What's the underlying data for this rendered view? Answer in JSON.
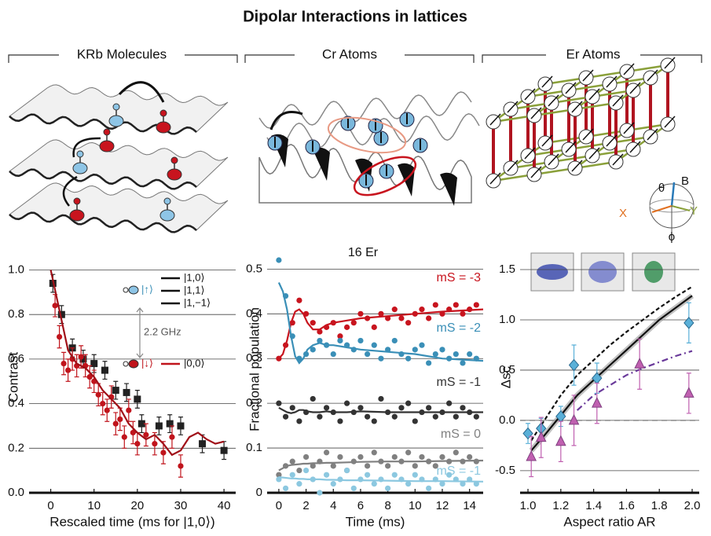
{
  "title": "Dipolar Interactions in lattices",
  "chart_data": [
    {
      "type": "scatter",
      "title": "KRb Molecules",
      "x_label": "Rescaled time (ms for |1,0⟩)",
      "y_label": "Contrast",
      "xlim": [
        -5,
        42.7
      ],
      "ylim": [
        0,
        1.03
      ],
      "xticks": [
        0,
        10,
        20,
        30,
        40
      ],
      "yticks": [
        {
          "value": 0,
          "label": "0.0"
        },
        0.2,
        0.4,
        0.6,
        0.8,
        {
          "value": 1,
          "label": "1.0"
        }
      ],
      "grid": true,
      "levels": [
        "|1,0⟩",
        "|1,1⟩",
        "|1,−1⟩",
        "|0,0⟩"
      ],
      "states": [
        "|↑⟩",
        "|↓⟩"
      ],
      "splitting": "2.2 GHz",
      "series": [
        {
          "color": "#222222",
          "marker": "square",
          "x": [
            0.5,
            2.5,
            5,
            7.5,
            10,
            12.5,
            15,
            17.5,
            20,
            21,
            25,
            27.5,
            30,
            35,
            40
          ],
          "values": [
            0.94,
            0.8,
            0.65,
            0.6,
            0.58,
            0.55,
            0.46,
            0.45,
            0.42,
            0.31,
            0.3,
            0.31,
            0.3,
            0.22,
            0.19
          ],
          "errors": [
            0.04,
            0.04,
            0.04,
            0.04,
            0.04,
            0.04,
            0.04,
            0.04,
            0.04,
            0.04,
            0.04,
            0.04,
            0.04,
            0.04,
            0.04
          ]
        },
        {
          "color": "#c0141c",
          "marker": "circle",
          "x": [
            1,
            2,
            3,
            4,
            5,
            6,
            7,
            8,
            9,
            10,
            11,
            12,
            13,
            14,
            15,
            16,
            17,
            18,
            19,
            20,
            22,
            24,
            26,
            28,
            30
          ],
          "values": [
            0.84,
            0.7,
            0.58,
            0.55,
            0.6,
            0.57,
            0.61,
            0.57,
            0.52,
            0.5,
            0.44,
            0.4,
            0.37,
            0.43,
            0.31,
            0.33,
            0.25,
            0.37,
            0.27,
            0.22,
            0.26,
            0.22,
            0.18,
            0.25,
            0.12
          ],
          "errors": [
            0.05,
            0.05,
            0.05,
            0.05,
            0.05,
            0.05,
            0.05,
            0.05,
            0.05,
            0.05,
            0.05,
            0.05,
            0.05,
            0.05,
            0.05,
            0.05,
            0.05,
            0.05,
            0.05,
            0.05,
            0.05,
            0.05,
            0.05,
            0.05,
            0.05
          ]
        },
        {
          "color": "#a01018",
          "line": "solid",
          "x": [
            0,
            2,
            4,
            6,
            8,
            10,
            12,
            14,
            16,
            18,
            20,
            22,
            24,
            26,
            28,
            30,
            32,
            34,
            36,
            38,
            40
          ],
          "values": [
            1.0,
            0.82,
            0.64,
            0.58,
            0.56,
            0.52,
            0.46,
            0.42,
            0.38,
            0.31,
            0.27,
            0.24,
            0.26,
            0.22,
            0.17,
            0.19,
            0.25,
            0.27,
            0.24,
            0.22,
            0.23
          ]
        }
      ]
    },
    {
      "type": "scatter",
      "title": "Cr Atoms",
      "x_label": "Time (ms)",
      "y_label": "Fractional population",
      "annotation": "16 Er",
      "xlim": [
        -0.86,
        15
      ],
      "ylim": [
        0,
        0.52
      ],
      "xticks": [
        0,
        2,
        4,
        6,
        8,
        10,
        12,
        14
      ],
      "yticks": [
        0,
        0.1,
        0.2,
        0.3,
        0.4,
        0.5
      ],
      "grid": true,
      "x": [
        0,
        0.5,
        1,
        1.5,
        2,
        2.5,
        3,
        3.5,
        4,
        4.5,
        5,
        5.5,
        6,
        6.5,
        7,
        7.5,
        8,
        8.5,
        9,
        9.5,
        10,
        10.5,
        11,
        11.5,
        12,
        12.5,
        13,
        13.5,
        14,
        14.5
      ],
      "fit_x": [
        0,
        0.3,
        0.6,
        0.9,
        1.2,
        1.5,
        1.8,
        2.1,
        2.5,
        3,
        3.5,
        4,
        5,
        6,
        8,
        10,
        12,
        15
      ],
      "series": [
        {
          "name": "mS = -3",
          "color": "#c8141e",
          "marker": "circle",
          "values": [
            0.3,
            0.33,
            0.38,
            0.43,
            0.4,
            0.38,
            0.36,
            0.37,
            0.38,
            0.35,
            0.37,
            0.38,
            0.4,
            0.39,
            0.37,
            0.4,
            0.39,
            0.41,
            0.39,
            0.38,
            0.4,
            0.41,
            0.39,
            0.42,
            0.4,
            0.41,
            0.42,
            0.4,
            0.41,
            0.42
          ],
          "fit": [
            0.3,
            0.31,
            0.34,
            0.38,
            0.405,
            0.41,
            0.4,
            0.38,
            0.365,
            0.365,
            0.375,
            0.38,
            0.385,
            0.39,
            0.395,
            0.4,
            0.405,
            0.41
          ]
        },
        {
          "name": "mS = -2",
          "color": "#3a8fb7",
          "marker": "circle",
          "values": [
            0.52,
            0.44,
            0.35,
            0.3,
            0.31,
            0.32,
            0.34,
            0.33,
            0.31,
            0.34,
            0.33,
            0.32,
            0.34,
            0.31,
            0.33,
            0.3,
            0.32,
            0.34,
            0.31,
            0.3,
            0.32,
            0.33,
            0.29,
            0.31,
            0.32,
            0.3,
            0.31,
            0.29,
            0.31,
            0.3
          ],
          "fit": [
            0.47,
            0.45,
            0.41,
            0.35,
            0.305,
            0.29,
            0.3,
            0.32,
            0.33,
            0.335,
            0.33,
            0.33,
            0.325,
            0.32,
            0.315,
            0.31,
            0.3,
            0.295
          ]
        },
        {
          "name": "mS = -1",
          "color": "#333333",
          "marker": "circle",
          "values": [
            0.2,
            0.17,
            0.19,
            0.16,
            0.18,
            0.21,
            0.17,
            0.19,
            0.18,
            0.16,
            0.2,
            0.18,
            0.19,
            0.17,
            0.16,
            0.21,
            0.18,
            0.17,
            0.19,
            0.2,
            0.16,
            0.18,
            0.19,
            0.17,
            0.18,
            0.2,
            0.17,
            0.19,
            0.18,
            0.17
          ],
          "fit": [
            0.19,
            0.185,
            0.18,
            0.178,
            0.18,
            0.185,
            0.185,
            0.182,
            0.18,
            0.18,
            0.182,
            0.18,
            0.18,
            0.182,
            0.18,
            0.18,
            0.18,
            0.18
          ]
        },
        {
          "name": "mS = 0",
          "color": "#808080",
          "marker": "circle",
          "values": [
            0.04,
            0.06,
            0.07,
            0.05,
            0.08,
            0.06,
            0.07,
            0.09,
            0.06,
            0.08,
            0.05,
            0.07,
            0.08,
            0.06,
            0.09,
            0.07,
            0.06,
            0.08,
            0.07,
            0.09,
            0.06,
            0.08,
            0.07,
            0.06,
            0.08,
            0.07,
            0.09,
            0.07,
            0.08,
            0.07
          ],
          "fit": [
            0.05,
            0.055,
            0.06,
            0.062,
            0.063,
            0.064,
            0.065,
            0.065,
            0.066,
            0.066,
            0.067,
            0.067,
            0.068,
            0.069,
            0.07,
            0.07,
            0.071,
            0.072
          ]
        },
        {
          "name": "mS = -1",
          "color": "#8cc8e0",
          "marker": "circle",
          "values": [
            0.03,
            0.01,
            0.04,
            0.02,
            0.05,
            0.03,
            0.0,
            0.04,
            0.02,
            0.03,
            0.05,
            0.01,
            0.03,
            0.04,
            0.02,
            0.03,
            0.01,
            0.04,
            0.03,
            0.02,
            0.04,
            0.03,
            0.01,
            0.03,
            0.02,
            0.04,
            0.03,
            0.02,
            0.03,
            0.02
          ],
          "fit": [
            0.035,
            0.034,
            0.033,
            0.032,
            0.032,
            0.031,
            0.031,
            0.03,
            0.03,
            0.03,
            0.029,
            0.029,
            0.028,
            0.028,
            0.027,
            0.026,
            0.026,
            0.025
          ]
        }
      ]
    },
    {
      "type": "scatter",
      "title": "Er Atoms",
      "x_label": "Aspect ratio AR",
      "y_label": "Δsc",
      "inset_labels": [
        "θ",
        "B",
        "X",
        "Y",
        "ϕ"
      ],
      "xlim": [
        0.952,
        2.043
      ],
      "ylim": [
        -0.72,
        1.68
      ],
      "xticks": [
        {
          "value": 1,
          "label": "1.0"
        },
        1.2,
        1.4,
        1.6,
        1.8,
        {
          "value": 2,
          "label": "2.0"
        }
      ],
      "yticks": [
        -0.5,
        {
          "value": 0,
          "label": "0.0"
        },
        0.5,
        {
          "value": 1,
          "label": "1.0"
        },
        1.5
      ],
      "grid": true,
      "reference_line": 0,
      "series": [
        {
          "color": "#9a9a9a",
          "line": "band",
          "x": [
            1.02,
            1.1,
            1.2,
            1.3,
            1.4,
            1.5,
            1.6,
            1.7,
            1.8,
            1.9,
            2.0
          ],
          "values": [
            -0.3,
            -0.15,
            0.05,
            0.25,
            0.4,
            0.55,
            0.7,
            0.85,
            1.0,
            1.12,
            1.24
          ]
        },
        {
          "color": "#111111",
          "line": "dashed",
          "x": [
            1.02,
            1.1,
            1.2,
            1.3,
            1.4,
            1.5,
            1.6,
            1.7,
            1.8,
            1.9,
            2.0
          ],
          "values": [
            -0.2,
            0.0,
            0.25,
            0.45,
            0.6,
            0.75,
            0.88,
            1.0,
            1.12,
            1.23,
            1.33
          ]
        },
        {
          "color": "#6a3a9a",
          "line": "dashdot",
          "x": [
            1.02,
            1.1,
            1.2,
            1.3,
            1.4,
            1.5,
            1.6,
            1.7,
            1.8,
            1.9,
            2.0
          ],
          "values": [
            null,
            null,
            null,
            0.1,
            0.25,
            0.35,
            0.45,
            0.52,
            0.58,
            0.64,
            0.69
          ]
        },
        {
          "color": "#5ab0d8",
          "marker": "diamond",
          "x": [
            1.0,
            1.08,
            1.2,
            1.28,
            1.42,
            1.98
          ],
          "values": [
            -0.13,
            -0.08,
            0.04,
            0.55,
            0.42,
            0.97
          ],
          "errors": [
            0.1,
            0.1,
            0.1,
            0.2,
            0.15,
            0.2
          ]
        },
        {
          "color": "#c060b0",
          "marker": "triangle",
          "x": [
            1.02,
            1.08,
            1.2,
            1.28,
            1.42,
            1.68,
            1.98
          ],
          "values": [
            -0.36,
            -0.17,
            -0.21,
            0.0,
            0.17,
            0.56,
            0.27
          ],
          "errors": [
            0.2,
            0.2,
            0.2,
            0.25,
            0.2,
            0.25,
            0.2
          ]
        }
      ]
    }
  ]
}
